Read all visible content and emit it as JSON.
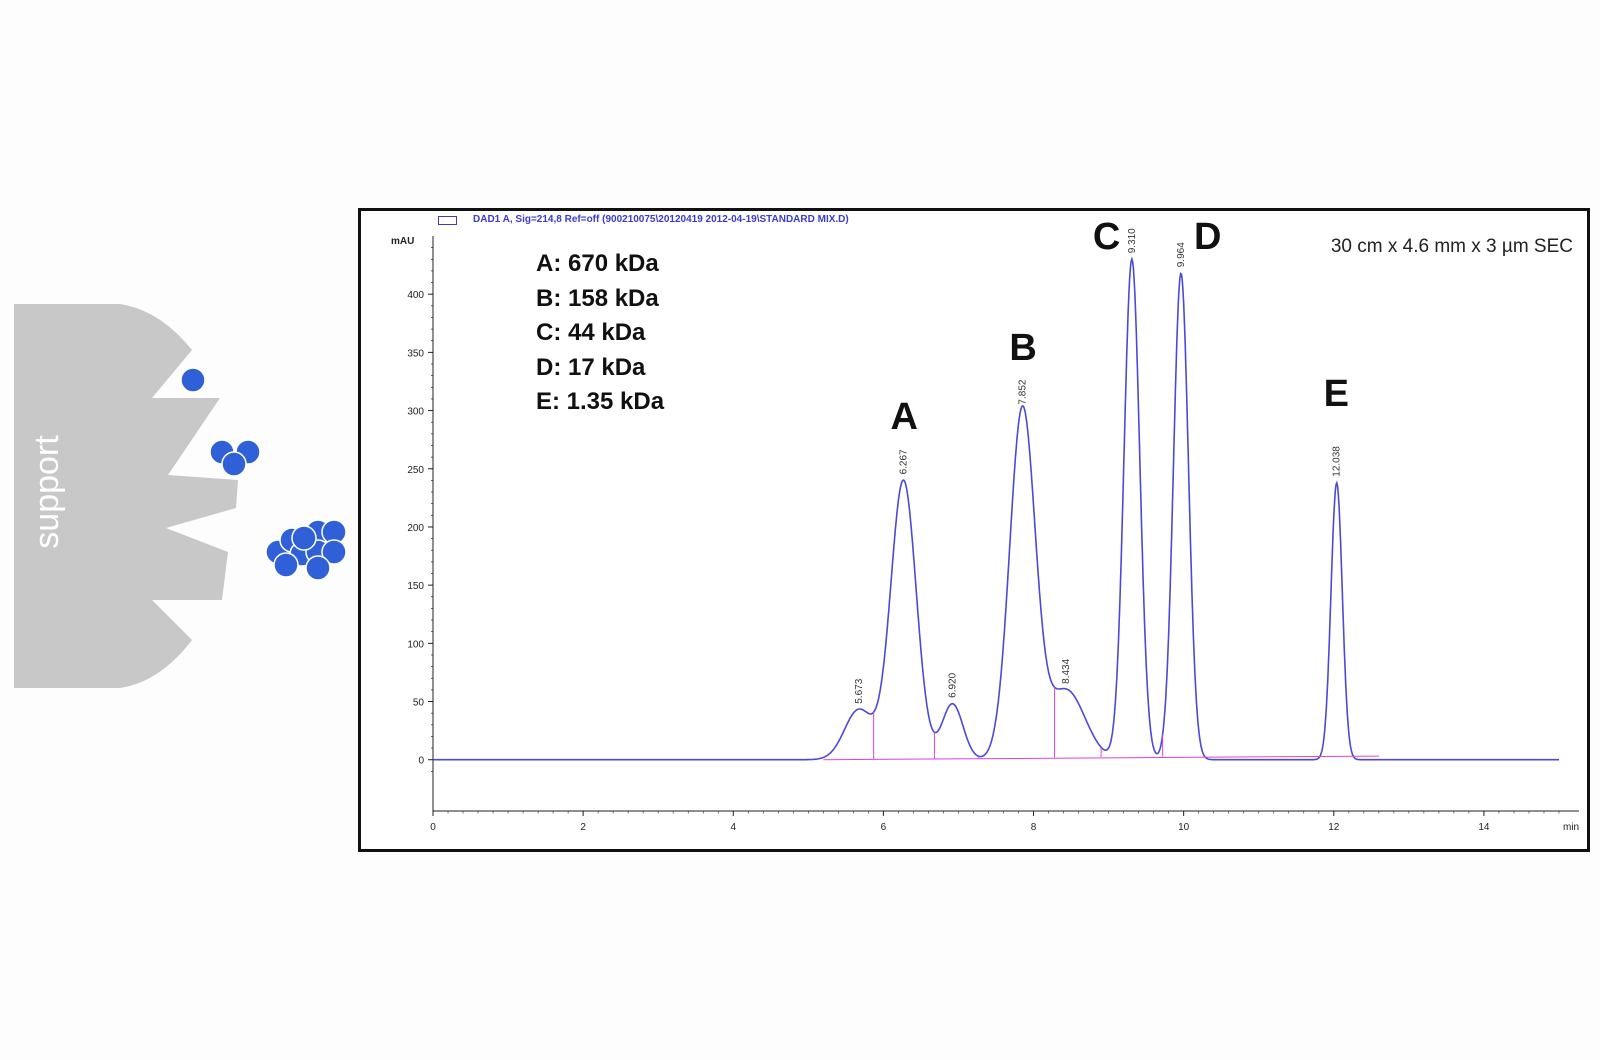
{
  "diagram": {
    "support_label": "support"
  },
  "chart_data": {
    "type": "line",
    "legend_text": "DAD1 A, Sig=214,8 Ref=off (900210075\\20120419 2012-04-19\\STANDARD MIX.D)",
    "y_unit": "mAU",
    "x_unit": "min",
    "xlim": [
      0,
      15
    ],
    "ylim": [
      -20,
      450
    ],
    "x_ticks": [
      0,
      2,
      4,
      6,
      8,
      10,
      12,
      14
    ],
    "y_ticks": [
      0,
      50,
      100,
      150,
      200,
      250,
      300,
      350,
      400
    ],
    "column_info": "30 cm x 4.6 mm x 3 µm SEC",
    "molecular_weights": [
      "A: 670 kDa",
      "B: 158 kDa",
      "C: 44 kDa",
      "D: 17 kDa",
      "E: 1.35 kDa"
    ],
    "peaks": [
      {
        "rt": 5.673,
        "label": "5.673",
        "height": 43,
        "width": 0.19
      },
      {
        "rt": 6.267,
        "label": "6.267",
        "height": 240,
        "width": 0.17
      },
      {
        "rt": 6.92,
        "label": "6.920",
        "height": 48,
        "width": 0.14
      },
      {
        "rt": 7.852,
        "label": "7.852",
        "height": 300,
        "width": 0.17
      },
      {
        "rt": 8.434,
        "label": "8.434",
        "height": 60,
        "width": 0.25
      },
      {
        "rt": 9.31,
        "label": "9.310",
        "height": 430,
        "width": 0.105
      },
      {
        "rt": 9.964,
        "label": "9.964",
        "height": 418,
        "width": 0.1
      },
      {
        "rt": 12.038,
        "label": "12.038",
        "height": 238,
        "width": 0.075
      }
    ],
    "baseline_drops": [
      5.87,
      6.68,
      7.27,
      8.28,
      8.9,
      9.72
    ],
    "peak_letters": [
      {
        "letter": "A",
        "rt": 6.267,
        "y": 295
      },
      {
        "letter": "B",
        "rt": 7.852,
        "y": 355
      },
      {
        "letter": "C",
        "rt": 9.31,
        "y": 450
      },
      {
        "letter": "D",
        "rt": 9.964,
        "y": 450
      },
      {
        "letter": "E",
        "rt": 12.038,
        "y": 315
      }
    ],
    "colors": {
      "trace": "#4a4ad6",
      "baseline": "#e040e0",
      "axis": "#222222"
    }
  }
}
